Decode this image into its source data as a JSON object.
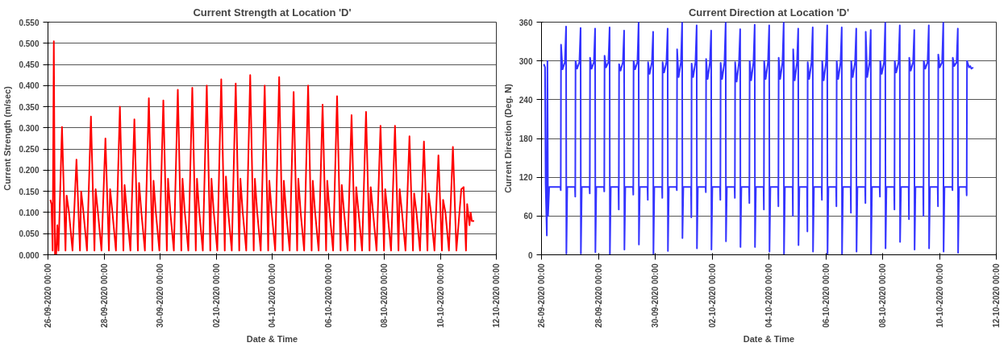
{
  "chart_data": [
    {
      "type": "line",
      "title": "Current Strength at Location 'D'",
      "xlabel": "Date & Time",
      "ylabel": "Current Strength (m/sec)",
      "grid": "y",
      "marker": "none",
      "line_style": "solid",
      "xlim": [
        "2020-09-26T00:00",
        "2020-10-12T00:00"
      ],
      "xticks": [
        {
          "value": "2020-09-26T00:00",
          "label": "26-09-2020 00:00"
        },
        {
          "value": "2020-09-28T00:00",
          "label": "28-09-2020 00:00"
        },
        {
          "value": "2020-09-30T00:00",
          "label": "30-09-2020 00:00"
        },
        {
          "value": "2020-10-02T00:00",
          "label": "02-10-2020 00:00"
        },
        {
          "value": "2020-10-04T00:00",
          "label": "04-10-2020 00:00"
        },
        {
          "value": "2020-10-06T00:00",
          "label": "06-10-2020 00:00"
        },
        {
          "value": "2020-10-08T00:00",
          "label": "08-10-2020 00:00"
        },
        {
          "value": "2020-10-10T00:00",
          "label": "10-10-2020 00:00"
        },
        {
          "value": "2020-10-12T00:00",
          "label": "12-10-2020 00:00"
        }
      ],
      "ylim": [
        0,
        0.55
      ],
      "yticks": [
        {
          "value": 0,
          "label": "0.000"
        },
        {
          "value": 0.05,
          "label": "0.050"
        },
        {
          "value": 0.1,
          "label": "0.100"
        },
        {
          "value": 0.15,
          "label": "0.150"
        },
        {
          "value": 0.2,
          "label": "0.200"
        },
        {
          "value": 0.25,
          "label": "0.250"
        },
        {
          "value": 0.3,
          "label": "0.300"
        },
        {
          "value": 0.35,
          "label": "0.350"
        },
        {
          "value": 0.4,
          "label": "0.400"
        },
        {
          "value": 0.45,
          "label": "0.450"
        },
        {
          "value": 0.5,
          "label": "0.500"
        },
        {
          "value": 0.55,
          "label": "0.550"
        }
      ],
      "series": [
        {
          "color": "#ff0000",
          "x": [
            "2020-09-26T02:00",
            "2020-09-26T03:00",
            "2020-09-26T04:00",
            "2020-09-26T05:00",
            "2020-09-26T06:00",
            "2020-09-26T07:00",
            "2020-09-26T08:00",
            "2020-09-26T09:00",
            "2020-09-26T12:00",
            "2020-09-26T15:00",
            "2020-09-26T16:00",
            "2020-09-26T18:00",
            "2020-09-26T21:00",
            "2020-09-27T00:24",
            "2020-09-27T03:24",
            "2020-09-27T04:24",
            "2020-09-27T06:24",
            "2020-09-27T09:24",
            "2020-09-27T12:48",
            "2020-09-27T15:48",
            "2020-09-27T16:48",
            "2020-09-27T18:48",
            "2020-09-27T21:48",
            "2020-09-28T01:12",
            "2020-09-28T04:12",
            "2020-09-28T05:12",
            "2020-09-28T07:12",
            "2020-09-28T10:12",
            "2020-09-28T13:36",
            "2020-09-28T16:36",
            "2020-09-28T17:36",
            "2020-09-28T19:36",
            "2020-09-28T22:36",
            "2020-09-29T02:00",
            "2020-09-29T05:00",
            "2020-09-29T06:00",
            "2020-09-29T08:00",
            "2020-09-29T11:00",
            "2020-09-29T14:24",
            "2020-09-29T17:24",
            "2020-09-29T18:24",
            "2020-09-29T20:24",
            "2020-09-29T23:24",
            "2020-09-30T02:48",
            "2020-09-30T05:48",
            "2020-09-30T06:48",
            "2020-09-30T08:48",
            "2020-09-30T11:48",
            "2020-09-30T15:12",
            "2020-09-30T18:12",
            "2020-09-30T19:12",
            "2020-09-30T21:12",
            "2020-10-01T00:12",
            "2020-10-01T03:36",
            "2020-10-01T06:36",
            "2020-10-01T07:36",
            "2020-10-01T09:36",
            "2020-10-01T12:36",
            "2020-10-01T16:00",
            "2020-10-01T19:00",
            "2020-10-01T20:00",
            "2020-10-01T22:00",
            "2020-10-02T01:00",
            "2020-10-02T04:24",
            "2020-10-02T07:24",
            "2020-10-02T08:24",
            "2020-10-02T10:24",
            "2020-10-02T13:24",
            "2020-10-02T16:48",
            "2020-10-02T19:48",
            "2020-10-02T20:48",
            "2020-10-02T22:48",
            "2020-10-03T01:48",
            "2020-10-03T05:12",
            "2020-10-03T08:12",
            "2020-10-03T09:12",
            "2020-10-03T11:12",
            "2020-10-03T14:12",
            "2020-10-03T17:36",
            "2020-10-03T20:36",
            "2020-10-03T21:36",
            "2020-10-03T23:36",
            "2020-10-04T02:36",
            "2020-10-04T06:00",
            "2020-10-04T09:00",
            "2020-10-04T10:00",
            "2020-10-04T12:00",
            "2020-10-04T15:00",
            "2020-10-04T18:24",
            "2020-10-04T21:24",
            "2020-10-04T22:24",
            "2020-10-05T00:24",
            "2020-10-05T03:24",
            "2020-10-05T06:48",
            "2020-10-05T09:48",
            "2020-10-05T10:48",
            "2020-10-05T12:48",
            "2020-10-05T15:48",
            "2020-10-05T19:12",
            "2020-10-05T22:12",
            "2020-10-05T23:12",
            "2020-10-06T01:12",
            "2020-10-06T04:12",
            "2020-10-06T07:36",
            "2020-10-06T10:36",
            "2020-10-06T11:36",
            "2020-10-06T13:36",
            "2020-10-06T16:36",
            "2020-10-06T20:00",
            "2020-10-06T23:00",
            "2020-10-07T00:00",
            "2020-10-07T02:00",
            "2020-10-07T05:00",
            "2020-10-07T08:24",
            "2020-10-07T11:24",
            "2020-10-07T12:24",
            "2020-10-07T14:24",
            "2020-10-07T17:24",
            "2020-10-07T20:48",
            "2020-10-07T23:48",
            "2020-10-08T00:48",
            "2020-10-08T02:48",
            "2020-10-08T05:48",
            "2020-10-08T09:12",
            "2020-10-08T12:12",
            "2020-10-08T13:12",
            "2020-10-08T15:12",
            "2020-10-08T18:12",
            "2020-10-08T21:36",
            "2020-10-09T00:36",
            "2020-10-09T01:36",
            "2020-10-09T03:36",
            "2020-10-09T06:36",
            "2020-10-09T10:00",
            "2020-10-09T13:00",
            "2020-10-09T14:00",
            "2020-10-09T16:00",
            "2020-10-09T19:00",
            "2020-10-09T22:24",
            "2020-10-10T01:24",
            "2020-10-10T02:24",
            "2020-10-10T04:24",
            "2020-10-10T07:24",
            "2020-10-10T10:48",
            "2020-10-10T13:48",
            "2020-10-10T18:00",
            "2020-10-10T20:00",
            "2020-10-10T22:00",
            "2020-10-10T23:00",
            "2020-10-11T01:00",
            "2020-10-11T02:00",
            "2020-10-11T03:00",
            "2020-10-11T05:00"
          ],
          "values": [
            0.13,
            0.12,
            0.01,
            0.505,
            0,
            0,
            0.07,
            0.01,
            0.302,
            0.01,
            0.14,
            0.1,
            0.01,
            0.225,
            0.01,
            0.15,
            0.1,
            0.01,
            0.327,
            0.01,
            0.155,
            0.1,
            0.01,
            0.275,
            0.01,
            0.155,
            0.1,
            0.01,
            0.35,
            0.01,
            0.165,
            0.1,
            0.01,
            0.32,
            0.01,
            0.17,
            0.1,
            0.01,
            0.37,
            0.01,
            0.175,
            0.1,
            0.01,
            0.365,
            0.01,
            0.18,
            0.1,
            0.01,
            0.39,
            0.01,
            0.18,
            0.1,
            0.01,
            0.395,
            0.01,
            0.18,
            0.1,
            0.01,
            0.4,
            0.01,
            0.18,
            0.1,
            0.01,
            0.415,
            0.01,
            0.185,
            0.1,
            0.01,
            0.405,
            0.01,
            0.18,
            0.1,
            0.01,
            0.425,
            0.01,
            0.18,
            0.1,
            0.01,
            0.4,
            0.01,
            0.175,
            0.1,
            0.01,
            0.42,
            0.01,
            0.175,
            0.1,
            0.01,
            0.385,
            0.01,
            0.18,
            0.1,
            0.01,
            0.4,
            0.01,
            0.175,
            0.1,
            0.01,
            0.355,
            0.01,
            0.175,
            0.1,
            0.01,
            0.375,
            0.01,
            0.165,
            0.1,
            0.01,
            0.33,
            0.01,
            0.16,
            0.1,
            0.01,
            0.338,
            0.01,
            0.16,
            0.1,
            0.01,
            0.305,
            0.01,
            0.155,
            0.1,
            0.01,
            0.305,
            0.01,
            0.155,
            0.1,
            0.01,
            0.28,
            0.01,
            0.145,
            0.1,
            0.01,
            0.268,
            0.01,
            0.145,
            0.1,
            0.01,
            0.235,
            0.01,
            0.13,
            0.1,
            0.01,
            0.255,
            0.01,
            0.155,
            0.16,
            0.01,
            0.12,
            0.07,
            0.1,
            0.08,
            0.08
          ]
        }
      ]
    },
    {
      "type": "line",
      "title": "Current Direction at Location 'D'",
      "xlabel": "Date & Time",
      "ylabel": "Current Direction (Deg. N)",
      "grid": "y",
      "marker": "none",
      "line_style": "solid",
      "xlim": [
        "2020-09-26T00:00",
        "2020-10-12T00:00"
      ],
      "xticks": [
        {
          "value": "2020-09-26T00:00",
          "label": "26-09-2020 00:00"
        },
        {
          "value": "2020-09-28T00:00",
          "label": "28-09-2020 00:00"
        },
        {
          "value": "2020-09-30T00:00",
          "label": "30-09-2020 00:00"
        },
        {
          "value": "2020-10-02T00:00",
          "label": "02-10-2020 00:00"
        },
        {
          "value": "2020-10-04T00:00",
          "label": "04-10-2020 00:00"
        },
        {
          "value": "2020-10-06T00:00",
          "label": "06-10-2020 00:00"
        },
        {
          "value": "2020-10-08T00:00",
          "label": "08-10-2020 00:00"
        },
        {
          "value": "2020-10-10T00:00",
          "label": "10-10-2020 00:00"
        },
        {
          "value": "2020-10-12T00:00",
          "label": "12-10-2020 00:00"
        }
      ],
      "ylim": [
        0,
        360
      ],
      "yticks": [
        0,
        60,
        120,
        180,
        240,
        300,
        360
      ],
      "series": [
        {
          "color": "#3333ff",
          "x": [
            "2020-09-26T02:00",
            "2020-09-26T03:00",
            "2020-09-26T03:30",
            "2020-09-26T04:30",
            "2020-09-26T05:00",
            "2020-09-26T05:30",
            "2020-09-26T06:30",
            "2020-09-26T16:00",
            "2020-09-26T16:15",
            "2020-09-26T16:30",
            "2020-09-26T17:45",
            "2020-09-26T19:45",
            "2020-09-26T20:45",
            "2020-09-26T21:00",
            "2020-09-26T21:45",
            "2020-09-27T04:15",
            "2020-09-27T04:30",
            "2020-09-27T04:45",
            "2020-09-27T06:00",
            "2020-09-27T08:00",
            "2020-09-27T09:00",
            "2020-09-27T09:15",
            "2020-09-27T10:00",
            "2020-09-27T16:30",
            "2020-09-27T16:45",
            "2020-09-27T17:00",
            "2020-09-27T18:15",
            "2020-09-27T20:15",
            "2020-09-27T21:15",
            "2020-09-27T21:30",
            "2020-09-27T22:15",
            "2020-09-28T04:45",
            "2020-09-28T05:00",
            "2020-09-28T05:15",
            "2020-09-28T06:30",
            "2020-09-28T08:30",
            "2020-09-28T09:30",
            "2020-09-28T09:45",
            "2020-09-28T10:30",
            "2020-09-28T17:00",
            "2020-09-28T17:15",
            "2020-09-28T17:30",
            "2020-09-28T18:45",
            "2020-09-28T20:45",
            "2020-09-28T21:45",
            "2020-09-28T22:00",
            "2020-09-28T22:45",
            "2020-09-29T05:15",
            "2020-09-29T05:30",
            "2020-09-29T05:45",
            "2020-09-29T07:00",
            "2020-09-29T09:00",
            "2020-09-29T10:00",
            "2020-09-29T10:15",
            "2020-09-29T11:00",
            "2020-09-29T17:30",
            "2020-09-29T17:45",
            "2020-09-29T18:00",
            "2020-09-29T19:15",
            "2020-09-29T21:15",
            "2020-09-29T22:15",
            "2020-09-29T22:30",
            "2020-09-29T23:15",
            "2020-09-30T05:45",
            "2020-09-30T06:00",
            "2020-09-30T06:15",
            "2020-09-30T07:30",
            "2020-09-30T09:30",
            "2020-09-30T10:30",
            "2020-09-30T10:45",
            "2020-09-30T11:30",
            "2020-09-30T18:00",
            "2020-09-30T18:15",
            "2020-09-30T18:30",
            "2020-09-30T19:45",
            "2020-09-30T21:45",
            "2020-09-30T22:45",
            "2020-09-30T23:00",
            "2020-09-30T23:45",
            "2020-10-01T06:15",
            "2020-10-01T06:30",
            "2020-10-01T06:45",
            "2020-10-01T08:00",
            "2020-10-01T10:00",
            "2020-10-01T11:00",
            "2020-10-01T11:15",
            "2020-10-01T12:00",
            "2020-10-01T18:30",
            "2020-10-01T18:45",
            "2020-10-01T19:00",
            "2020-10-01T20:15",
            "2020-10-01T22:15",
            "2020-10-01T23:15",
            "2020-10-01T23:30",
            "2020-10-02T00:15",
            "2020-10-02T06:45",
            "2020-10-02T07:00",
            "2020-10-02T07:15",
            "2020-10-02T08:30",
            "2020-10-02T10:30",
            "2020-10-02T11:30",
            "2020-10-02T11:45",
            "2020-10-02T12:30",
            "2020-10-02T19:00",
            "2020-10-02T19:15",
            "2020-10-02T19:30",
            "2020-10-02T20:45",
            "2020-10-02T22:45",
            "2020-10-02T23:45",
            "2020-10-03T00:00",
            "2020-10-03T00:45",
            "2020-10-03T07:15",
            "2020-10-03T07:30",
            "2020-10-03T07:45",
            "2020-10-03T09:00",
            "2020-10-03T11:00",
            "2020-10-03T12:00",
            "2020-10-03T12:15",
            "2020-10-03T13:00",
            "2020-10-03T19:30",
            "2020-10-03T19:45",
            "2020-10-03T20:00",
            "2020-10-03T21:15",
            "2020-10-03T23:15",
            "2020-10-04T00:15",
            "2020-10-04T00:30",
            "2020-10-04T01:15",
            "2020-10-04T07:45",
            "2020-10-04T08:00",
            "2020-10-04T08:15",
            "2020-10-04T09:30",
            "2020-10-04T11:30",
            "2020-10-04T12:30",
            "2020-10-04T12:45",
            "2020-10-04T13:30",
            "2020-10-04T20:00",
            "2020-10-04T20:15",
            "2020-10-04T20:30",
            "2020-10-04T21:45",
            "2020-10-04T23:45",
            "2020-10-05T00:45",
            "2020-10-05T01:00",
            "2020-10-05T01:45",
            "2020-10-05T08:15",
            "2020-10-05T08:30",
            "2020-10-05T08:45",
            "2020-10-05T10:00",
            "2020-10-05T12:00",
            "2020-10-05T13:00",
            "2020-10-05T13:15",
            "2020-10-05T14:00",
            "2020-10-05T20:30",
            "2020-10-05T20:45",
            "2020-10-05T21:00",
            "2020-10-05T22:15",
            "2020-10-06T00:15",
            "2020-10-06T01:15",
            "2020-10-06T01:30",
            "2020-10-06T02:15",
            "2020-10-06T08:45",
            "2020-10-06T09:00",
            "2020-10-06T09:15",
            "2020-10-06T10:30",
            "2020-10-06T12:30",
            "2020-10-06T13:30",
            "2020-10-06T13:45",
            "2020-10-06T14:30",
            "2020-10-06T21:00",
            "2020-10-06T21:15",
            "2020-10-06T21:30",
            "2020-10-06T22:45",
            "2020-10-07T00:45",
            "2020-10-07T01:45",
            "2020-10-07T02:00",
            "2020-10-07T02:45",
            "2020-10-07T09:15",
            "2020-10-07T09:30",
            "2020-10-07T09:45",
            "2020-10-07T11:00",
            "2020-10-07T13:00",
            "2020-10-07T14:00",
            "2020-10-07T14:15",
            "2020-10-07T15:00",
            "2020-10-07T21:30",
            "2020-10-07T21:45",
            "2020-10-07T22:00",
            "2020-10-07T23:15",
            "2020-10-08T01:15",
            "2020-10-08T02:15",
            "2020-10-08T02:30",
            "2020-10-08T03:15",
            "2020-10-08T09:45",
            "2020-10-08T10:00",
            "2020-10-08T10:15",
            "2020-10-08T11:30",
            "2020-10-08T13:30",
            "2020-10-08T14:30",
            "2020-10-08T14:45",
            "2020-10-08T15:30",
            "2020-10-08T22:00",
            "2020-10-08T22:15",
            "2020-10-08T22:30",
            "2020-10-08T23:45",
            "2020-10-09T01:45",
            "2020-10-09T02:45",
            "2020-10-09T03:00",
            "2020-10-09T03:45",
            "2020-10-09T10:15",
            "2020-10-09T10:30",
            "2020-10-09T10:45",
            "2020-10-09T12:00",
            "2020-10-09T14:00",
            "2020-10-09T15:00",
            "2020-10-09T15:15",
            "2020-10-09T16:00",
            "2020-10-09T22:30",
            "2020-10-09T22:45",
            "2020-10-09T23:00",
            "2020-10-10T00:15",
            "2020-10-10T02:15",
            "2020-10-10T03:15",
            "2020-10-10T03:30",
            "2020-10-10T04:15",
            "2020-10-10T10:45",
            "2020-10-10T11:00",
            "2020-10-10T11:15",
            "2020-10-10T12:30",
            "2020-10-10T14:30",
            "2020-10-10T15:30",
            "2020-10-10T15:45",
            "2020-10-10T16:30",
            "2020-10-10T22:45",
            "2020-10-10T23:00",
            "2020-10-10T23:15",
            "2020-10-11T01:00",
            "2020-10-11T02:00",
            "2020-10-11T03:00",
            "2020-10-11T04:30"
          ],
          "values": [
            295,
            290,
            110,
            30,
            300,
            60,
            105,
            105,
            100,
            325,
            287,
            298,
            353,
            2,
            105,
            105,
            90,
            300,
            288,
            298,
            351,
            2,
            105,
            105,
            95,
            305,
            288,
            298,
            350,
            4,
            105,
            105,
            98,
            308,
            290,
            298,
            352,
            0,
            105,
            105,
            70,
            295,
            285,
            298,
            347,
            8,
            105,
            105,
            93,
            300,
            287,
            298,
            360,
            16,
            105,
            105,
            85,
            298,
            280,
            298,
            345,
            0,
            105,
            105,
            88,
            298,
            282,
            298,
            350,
            6,
            105,
            105,
            100,
            318,
            275,
            298,
            360,
            26,
            105,
            105,
            58,
            296,
            275,
            298,
            355,
            10,
            105,
            105,
            97,
            303,
            272,
            298,
            347,
            8,
            105,
            105,
            85,
            297,
            272,
            298,
            360,
            21,
            105,
            105,
            88,
            298,
            268,
            298,
            349,
            12,
            105,
            105,
            80,
            300,
            270,
            298,
            356,
            12,
            105,
            105,
            70,
            300,
            272,
            298,
            355,
            5,
            105,
            105,
            75,
            305,
            272,
            298,
            360,
            0,
            105,
            105,
            60,
            318,
            270,
            298,
            350,
            15,
            105,
            105,
            36,
            298,
            272,
            298,
            352,
            5,
            105,
            105,
            85,
            300,
            270,
            298,
            355,
            0,
            105,
            105,
            75,
            300,
            272,
            298,
            352,
            0,
            105,
            105,
            65,
            300,
            275,
            298,
            350,
            5,
            105,
            105,
            80,
            345,
            275,
            298,
            348,
            0,
            105,
            105,
            90,
            300,
            280,
            298,
            360,
            10,
            105,
            105,
            70,
            300,
            282,
            298,
            355,
            20,
            105,
            105,
            55,
            305,
            285,
            298,
            348,
            8,
            105,
            105,
            60,
            300,
            288,
            298,
            355,
            10,
            105,
            105,
            75,
            310,
            290,
            298,
            360,
            5,
            105,
            105,
            100,
            305,
            292,
            298,
            350,
            3,
            105,
            105,
            92,
            300,
            290,
            292,
            288,
            290
          ]
        }
      ]
    }
  ]
}
